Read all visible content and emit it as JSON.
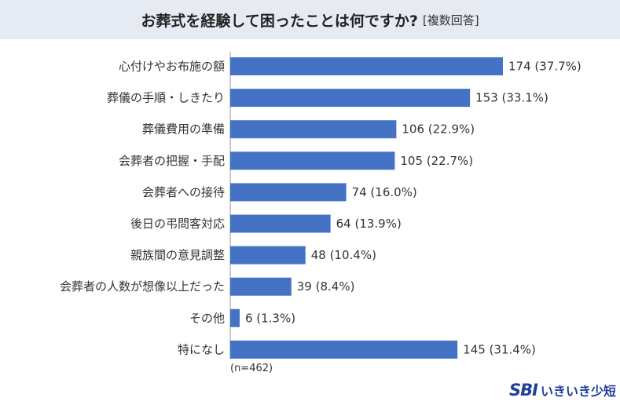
{
  "header": {
    "title": "お葬式を経験して困ったことは何ですか?",
    "subtitle": "[複数回答]"
  },
  "note": "(n=462)",
  "logo": {
    "mark": "SBI",
    "text": "いきいき少短"
  },
  "colors": {
    "bar": "#4472c4",
    "header_bg": "#e6ebf3",
    "logo": "#1f3f9b"
  },
  "chart_data": {
    "type": "bar",
    "orientation": "horizontal",
    "categories": [
      "心付けやお布施の額",
      "葬儀の手順・しきたり",
      "葬儀費用の準備",
      "会葬者の把握・手配",
      "会葬者への接待",
      "後日の弔問客対応",
      "親族間の意見調整",
      "会葬者の人数が想像以上だった",
      "その他",
      "特になし"
    ],
    "values": [
      174,
      153,
      106,
      105,
      74,
      64,
      48,
      39,
      6,
      145
    ],
    "value_labels": [
      "174 (37.7%)",
      "153 (33.1%)",
      "106 (22.9%)",
      "105 (22.7%)",
      "74 (16.0%)",
      "64 (13.9%)",
      "48 (10.4%)",
      "39 (8.4%)",
      "6 (1.3%)",
      "145 (31.4%)"
    ],
    "title": "お葬式を経験して困ったことは何ですか?",
    "xlabel": "",
    "ylabel": "",
    "xlim": [
      0,
      174
    ],
    "grid": false,
    "legend": "none"
  }
}
